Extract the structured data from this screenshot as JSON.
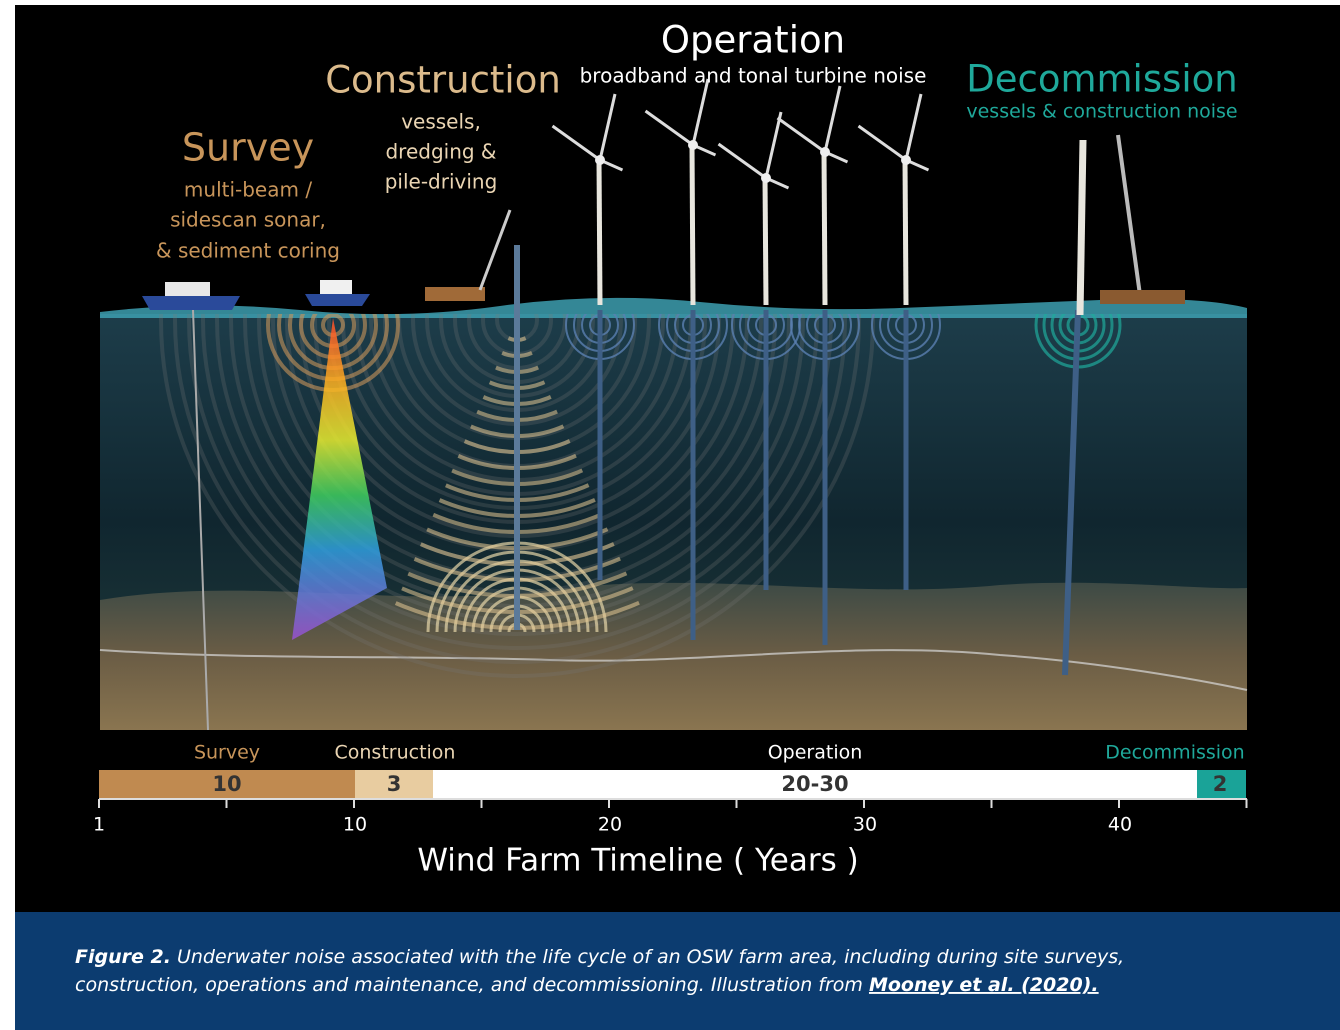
{
  "illustration": {
    "phases": [
      {
        "title": "Survey",
        "subtitle_lines": [
          "multi-beam /",
          "sidescan sonar,",
          "& sediment coring"
        ]
      },
      {
        "title": "Construction",
        "subtitle_lines": [
          "vessels,",
          "dredging &",
          "pile-driving"
        ]
      },
      {
        "title": "Operation",
        "subtitle_lines": [
          "broadband and tonal turbine noise"
        ]
      },
      {
        "title": "Decommission",
        "subtitle_lines": [
          "vessels & construction noise"
        ]
      }
    ]
  },
  "timeline": {
    "segments": [
      {
        "name": "Survey",
        "duration": "10"
      },
      {
        "name": "Construction",
        "duration": "3"
      },
      {
        "name": "Operation",
        "duration": "20-30"
      },
      {
        "name": "Decommission",
        "duration": "2"
      }
    ],
    "ticks": [
      1,
      10,
      20,
      30,
      40
    ],
    "axis_title": "Wind Farm Timeline ( Years )"
  },
  "caption": {
    "label": "Figure 2.",
    "text_lines": [
      "Underwater noise associated with the life cycle of an OSW farm area, including during site surveys,",
      "construction, operations and maintenance, and decommissioning. Illustration from"
    ],
    "link": "Mooney et al. (2020)."
  }
}
